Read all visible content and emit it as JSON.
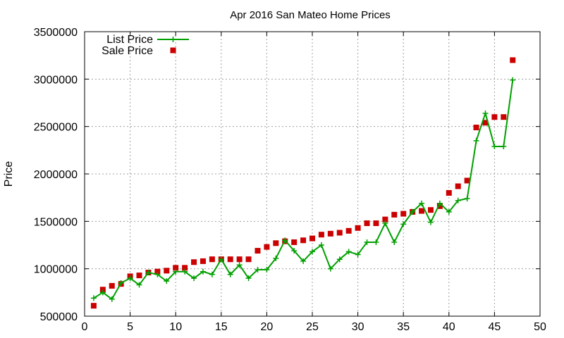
{
  "chart_data": {
    "type": "line",
    "title": "Apr 2016 San Mateo Home Prices",
    "xlabel": "",
    "ylabel": "Price",
    "xlim": [
      0,
      50
    ],
    "ylim": [
      500000,
      3500000
    ],
    "x_ticks": [
      0,
      5,
      10,
      15,
      20,
      25,
      30,
      35,
      40,
      45,
      50
    ],
    "y_ticks": [
      500000,
      1000000,
      1500000,
      2000000,
      2500000,
      3000000,
      3500000
    ],
    "grid": true,
    "legend_position": "top-left",
    "x": [
      1,
      2,
      3,
      4,
      5,
      6,
      7,
      8,
      9,
      10,
      11,
      12,
      13,
      14,
      15,
      16,
      17,
      18,
      19,
      20,
      21,
      22,
      23,
      24,
      25,
      26,
      27,
      28,
      29,
      30,
      31,
      32,
      33,
      34,
      35,
      36,
      37,
      38,
      39,
      40,
      41,
      42,
      43,
      44,
      45,
      46,
      47
    ],
    "series": [
      {
        "name": "List Price",
        "style": "lines-with-plus-markers",
        "color": "#00a000",
        "values": [
          690000,
          750000,
          680000,
          850000,
          900000,
          830000,
          960000,
          940000,
          870000,
          970000,
          970000,
          900000,
          970000,
          940000,
          1100000,
          940000,
          1040000,
          900000,
          990000,
          990000,
          1110000,
          1300000,
          1190000,
          1080000,
          1180000,
          1250000,
          1000000,
          1100000,
          1180000,
          1150000,
          1280000,
          1280000,
          1480000,
          1280000,
          1470000,
          1600000,
          1690000,
          1490000,
          1690000,
          1600000,
          1720000,
          1740000,
          2350000,
          2640000,
          2290000,
          2290000,
          2990000
        ]
      },
      {
        "name": "Sale Price",
        "style": "square-points",
        "color": "#cc0000",
        "values": [
          610000,
          780000,
          820000,
          840000,
          920000,
          930000,
          960000,
          970000,
          980000,
          1010000,
          1010000,
          1070000,
          1080000,
          1100000,
          1100000,
          1100000,
          1100000,
          1100000,
          1190000,
          1230000,
          1270000,
          1290000,
          1280000,
          1300000,
          1320000,
          1360000,
          1370000,
          1380000,
          1400000,
          1430000,
          1480000,
          1480000,
          1520000,
          1570000,
          1580000,
          1600000,
          1610000,
          1620000,
          1660000,
          1800000,
          1870000,
          1930000,
          2490000,
          2540000,
          2600000,
          2600000,
          3200000
        ]
      }
    ]
  }
}
